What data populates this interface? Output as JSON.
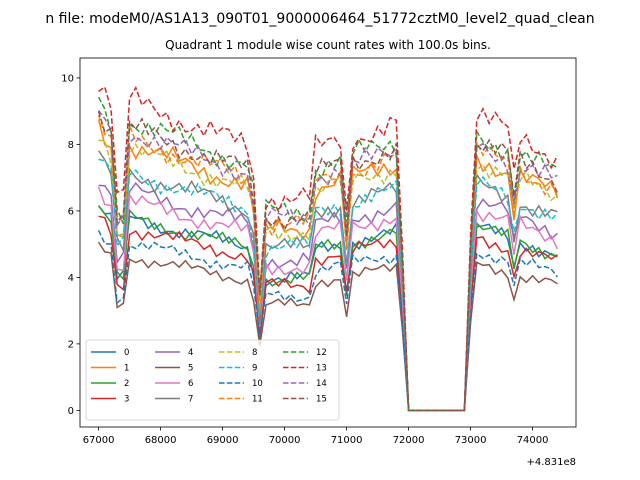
{
  "suptitle": "n file: modeM0/AS1A13_090T01_9000006464_51772cztM0_level2_quad_clean",
  "chart_data": {
    "type": "line",
    "title": "Quadrant 1 module wise count rates with 100.0s bins.",
    "xlabel": "",
    "ylabel": "",
    "x_offset_label": "+4.831e8",
    "xlim": [
      66700,
      74700
    ],
    "ylim": [
      -0.5,
      10.6
    ],
    "x_ticks": [
      67000,
      68000,
      69000,
      70000,
      71000,
      72000,
      73000,
      74000
    ],
    "y_ticks": [
      0,
      2,
      4,
      6,
      8,
      10
    ],
    "grid": false,
    "legend_position": "lower-left",
    "legend_columns": 4,
    "x_segments": [
      [
        67000,
        71950
      ],
      [
        72050,
        72950
      ],
      [
        73000,
        74450
      ]
    ],
    "series": [
      {
        "name": "0",
        "color": "#1f77b4",
        "dash": "solid",
        "base": 5.5
      },
      {
        "name": "1",
        "color": "#ff7f0e",
        "dash": "solid",
        "base": 7.6
      },
      {
        "name": "2",
        "color": "#2ca02c",
        "dash": "solid",
        "base": 5.5
      },
      {
        "name": "3",
        "color": "#d62728",
        "dash": "solid",
        "base": 5.2
      },
      {
        "name": "4",
        "color": "#9467bd",
        "dash": "solid",
        "base": 6.3
      },
      {
        "name": "5",
        "color": "#8c564b",
        "dash": "solid",
        "base": 4.4
      },
      {
        "name": "6",
        "color": "#e377c2",
        "dash": "solid",
        "base": 6.0
      },
      {
        "name": "7",
        "color": "#7f7f7f",
        "dash": "solid",
        "base": 6.8
      },
      {
        "name": "8",
        "color": "#bcbd22",
        "dash": "dashed",
        "base": 7.5
      },
      {
        "name": "9",
        "color": "#17becf",
        "dash": "dashed",
        "base": 6.8
      },
      {
        "name": "10",
        "color": "#1f77b4",
        "dash": "dashed",
        "base": 4.8
      },
      {
        "name": "11",
        "color": "#ff7f0e",
        "dash": "dashed",
        "base": 7.8
      },
      {
        "name": "12",
        "color": "#2ca02c",
        "dash": "dashed",
        "base": 8.3
      },
      {
        "name": "13",
        "color": "#d62728",
        "dash": "dashed",
        "base": 8.9
      },
      {
        "name": "14",
        "color": "#9467bd",
        "dash": "dashed",
        "base": 8.0
      },
      {
        "name": "15",
        "color": "#8c564b",
        "dash": "dashed",
        "base": 8.1
      }
    ]
  }
}
